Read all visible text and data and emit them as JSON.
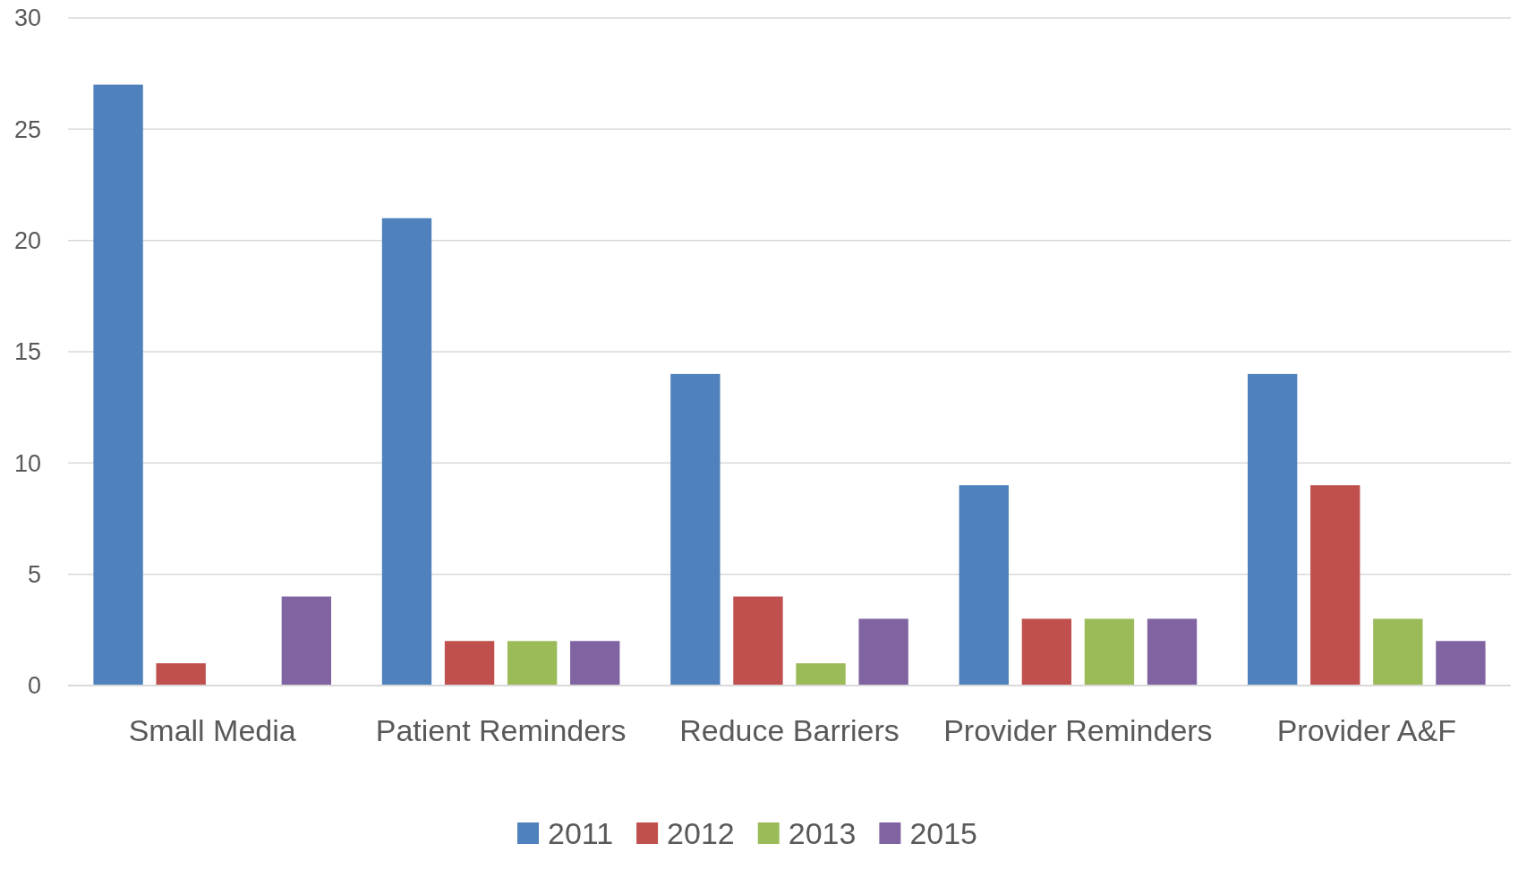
{
  "chart_data": {
    "type": "bar",
    "categories": [
      "Small Media",
      "Patient Reminders",
      "Reduce Barriers",
      "Provider Reminders",
      "Provider A&F"
    ],
    "series": [
      {
        "name": "2011",
        "color": "#4f81bd",
        "values": [
          27,
          21,
          14,
          9,
          14
        ]
      },
      {
        "name": "2012",
        "color": "#c0504d",
        "values": [
          1,
          2,
          4,
          3,
          9
        ]
      },
      {
        "name": "2013",
        "color": "#9bbb59",
        "values": [
          0,
          2,
          1,
          3,
          3
        ]
      },
      {
        "name": "2015",
        "color": "#8064a2",
        "values": [
          4,
          2,
          3,
          3,
          2
        ]
      }
    ],
    "ylim": [
      0,
      30
    ],
    "yticks": [
      0,
      5,
      10,
      15,
      20,
      25,
      30
    ],
    "grid": "y",
    "legend": "bottom"
  }
}
